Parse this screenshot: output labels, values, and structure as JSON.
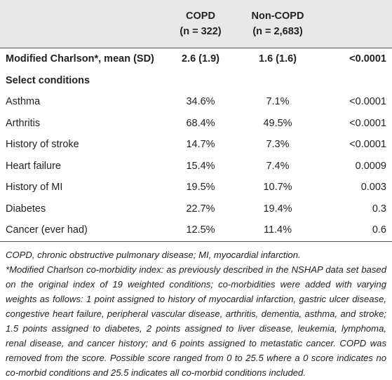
{
  "table": {
    "header": [
      [
        "",
        "COPD",
        "Non-COPD",
        ""
      ],
      [
        "",
        "(n = 322)",
        "(n = 2,683)",
        ""
      ]
    ],
    "rows": [
      [
        "Modified Charlson*, mean (SD)",
        "2.6 (1.9)",
        "1.6 (1.6)",
        "<0.0001"
      ],
      [
        "Select conditions"
      ],
      [
        "Asthma",
        "34.6%",
        "7.1%",
        "<0.0001"
      ],
      [
        "Arthritis",
        "68.4%",
        "49.5%",
        "<0.0001"
      ],
      [
        "History of stroke",
        "14.7%",
        "7.3%",
        "<0.0001"
      ],
      [
        "Heart failure",
        "15.4%",
        "7.4%",
        "0.0009"
      ],
      [
        "History of MI",
        "19.5%",
        "10.7%",
        "0.003"
      ],
      [
        "Diabetes",
        "22.7%",
        "19.4%",
        "0.3"
      ],
      [
        "Cancer (ever had)",
        "12.5%",
        "11.4%",
        "0.6"
      ]
    ]
  },
  "notes": [
    "COPD, chronic obstructive pulmonary disease; MI, myocardial infarction.",
    "*Modified Charlson co-morbidity index: as previously described in the NSHAP data set based on the original index of 19 weighted conditions; co-morbidities were added with varying weights as follows: 1 point assigned to history of myocardial infarction, gastric ulcer disease, congestive heart failure, peripheral vascular disease, arthritis, dementia, asthma, and stroke; 1.5 points assigned to diabetes, 2 points assigned to liver disease, leukemia, lymphoma, renal disease, and cancer history; and 6 points assigned to metastatic cancer. COPD was removed from the score. Possible score ranged from 0 to 25.5 where a 0 score indicates no co-morbid conditions and 25.5 indicates all co-morbid conditions included."
  ]
}
